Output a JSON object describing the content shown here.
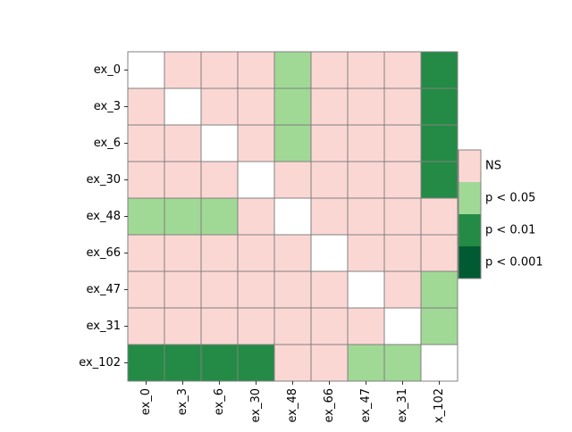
{
  "chart_data": {
    "type": "heatmap",
    "title": "",
    "xlabel": "",
    "ylabel": "",
    "rows": [
      "ex_0",
      "ex_3",
      "ex_6",
      "ex_30",
      "ex_48",
      "ex_66",
      "ex_47",
      "ex_31",
      "ex_102"
    ],
    "columns": [
      "ex_0",
      "ex_3",
      "ex_6",
      "ex_30",
      "ex_48",
      "ex_66",
      "ex_47",
      "ex_31",
      "x_102"
    ],
    "values": [
      [
        null,
        "NS",
        "NS",
        "NS",
        "p < 0.05",
        "NS",
        "NS",
        "NS",
        "p < 0.01"
      ],
      [
        "NS",
        null,
        "NS",
        "NS",
        "p < 0.05",
        "NS",
        "NS",
        "NS",
        "p < 0.01"
      ],
      [
        "NS",
        "NS",
        null,
        "NS",
        "p < 0.05",
        "NS",
        "NS",
        "NS",
        "p < 0.01"
      ],
      [
        "NS",
        "NS",
        "NS",
        null,
        "NS",
        "NS",
        "NS",
        "NS",
        "p < 0.01"
      ],
      [
        "p < 0.05",
        "p < 0.05",
        "p < 0.05",
        "NS",
        null,
        "NS",
        "NS",
        "NS",
        "NS"
      ],
      [
        "NS",
        "NS",
        "NS",
        "NS",
        "NS",
        null,
        "NS",
        "NS",
        "NS"
      ],
      [
        "NS",
        "NS",
        "NS",
        "NS",
        "NS",
        "NS",
        null,
        "NS",
        "p < 0.05"
      ],
      [
        "NS",
        "NS",
        "NS",
        "NS",
        "NS",
        "NS",
        "NS",
        null,
        "p < 0.05"
      ],
      [
        "p < 0.01",
        "p < 0.01",
        "p < 0.01",
        "p < 0.01",
        "NS",
        "NS",
        "p < 0.05",
        "p < 0.05",
        null
      ]
    ],
    "legend": {
      "placement": "right",
      "items": [
        {
          "label": "NS",
          "color": "#fbd7d4"
        },
        {
          "label": "p < 0.05",
          "color": "#a0d995"
        },
        {
          "label": "p < 0.01",
          "color": "#238b45"
        },
        {
          "label": "p < 0.001",
          "color": "#005a32"
        }
      ]
    },
    "diagonal_color": "#ffffff",
    "cell_border_color": "#808080"
  }
}
